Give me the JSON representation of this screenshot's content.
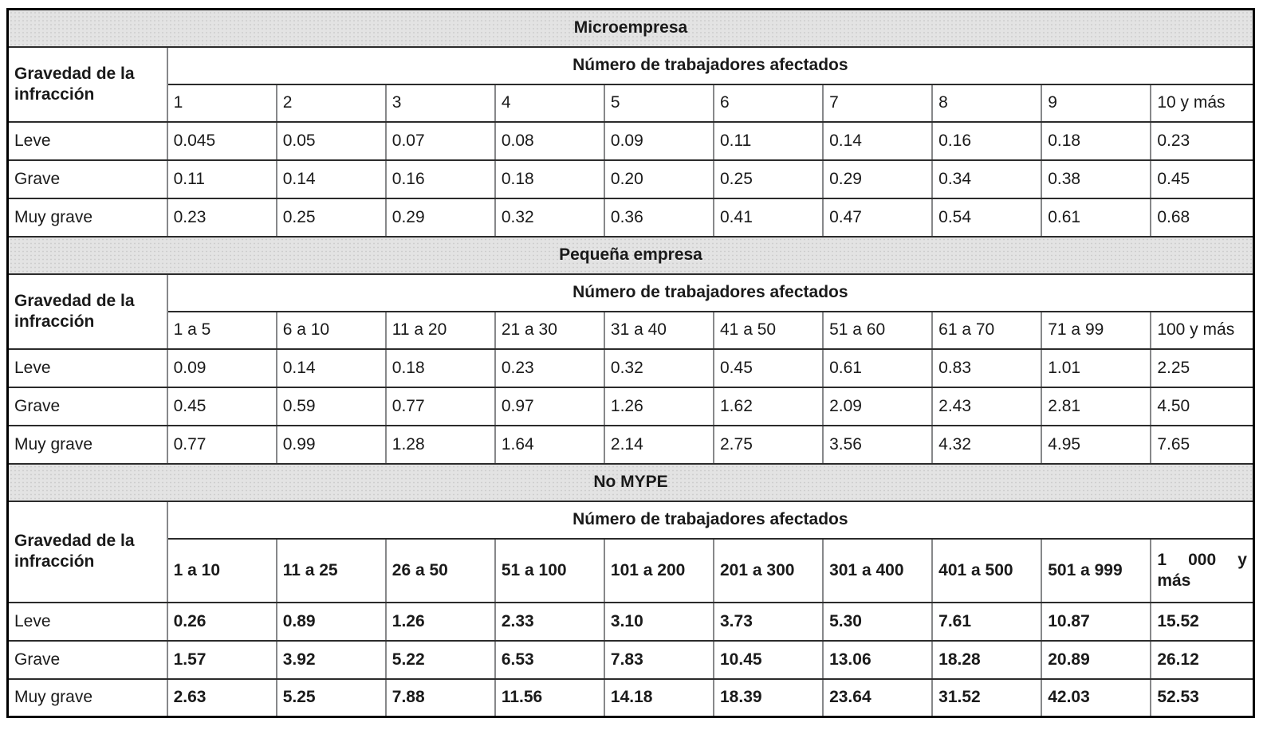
{
  "table": {
    "row_header_label": "Gravedad de la infracción",
    "col_group_label": "Número de trabajadores afectados",
    "colors": {
      "band_bg": "#e3e3e3",
      "grid_dark": "#2b2b2b",
      "grid_gray": "#87888a",
      "outer_border": "#000000",
      "text": "#1a1a1a"
    },
    "sections": [
      {
        "title": "Microempresa",
        "columns": [
          "1",
          "2",
          "3",
          "4",
          "5",
          "6",
          "7",
          "8",
          "9",
          "10 y más"
        ],
        "rows": [
          {
            "label": "Leve",
            "values": [
              "0.045",
              "0.05",
              "0.07",
              "0.08",
              "0.09",
              "0.11",
              "0.14",
              "0.16",
              "0.18",
              "0.23"
            ]
          },
          {
            "label": "Grave",
            "values": [
              "0.11",
              "0.14",
              "0.16",
              "0.18",
              "0.20",
              "0.25",
              "0.29",
              "0.34",
              "0.38",
              "0.45"
            ]
          },
          {
            "label": "Muy grave",
            "values": [
              "0.23",
              "0.25",
              "0.29",
              "0.32",
              "0.36",
              "0.41",
              "0.47",
              "0.54",
              "0.61",
              "0.68"
            ]
          }
        ]
      },
      {
        "title": "Pequeña empresa",
        "columns": [
          "1 a 5",
          "6 a 10",
          "11 a 20",
          "21 a 30",
          "31 a 40",
          "41 a 50",
          "51 a 60",
          "61 a 70",
          "71 a 99",
          "100 y más"
        ],
        "rows": [
          {
            "label": "Leve",
            "values": [
              "0.09",
              "0.14",
              "0.18",
              "0.23",
              "0.32",
              "0.45",
              "0.61",
              "0.83",
              "1.01",
              "2.25"
            ]
          },
          {
            "label": "Grave",
            "values": [
              "0.45",
              "0.59",
              "0.77",
              "0.97",
              "1.26",
              "1.62",
              "2.09",
              "2.43",
              "2.81",
              "4.50"
            ]
          },
          {
            "label": "Muy grave",
            "values": [
              "0.77",
              "0.99",
              "1.28",
              "1.64",
              "2.14",
              "2.75",
              "3.56",
              "4.32",
              "4.95",
              "7.65"
            ]
          }
        ]
      },
      {
        "title": "No MYPE",
        "columns": [
          "1 a 10",
          "11 a 25",
          "26 a 50",
          "51 a 100",
          "101 a 200",
          "201 a 300",
          "301 a 400",
          "401 a 500",
          "501 a 999",
          "1 000 y más"
        ],
        "rows": [
          {
            "label": "Leve",
            "values": [
              "0.26",
              "0.89",
              "1.26",
              "2.33",
              "3.10",
              "3.73",
              "5.30",
              "7.61",
              "10.87",
              "15.52"
            ]
          },
          {
            "label": "Grave",
            "values": [
              "1.57",
              "3.92",
              "5.22",
              "6.53",
              "7.83",
              "10.45",
              "13.06",
              "18.28",
              "20.89",
              "26.12"
            ]
          },
          {
            "label": "Muy grave",
            "values": [
              "2.63",
              "5.25",
              "7.88",
              "11.56",
              "14.18",
              "18.39",
              "23.64",
              "31.52",
              "42.03",
              "52.53"
            ]
          }
        ]
      }
    ]
  }
}
